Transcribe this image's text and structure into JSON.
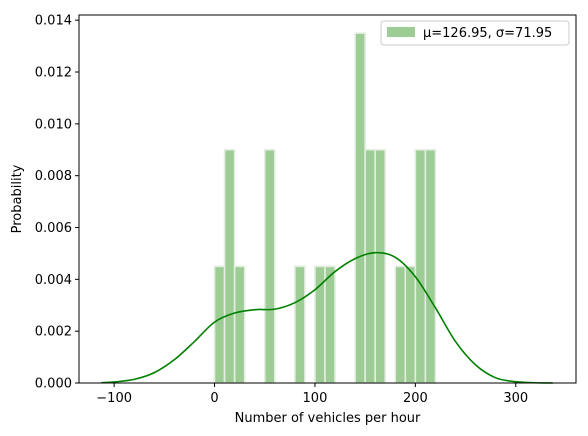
{
  "chart_data": {
    "type": "bar",
    "xlabel": "Number of vehicles per hour",
    "ylabel": "Probability",
    "xlim": [
      -135,
      360
    ],
    "ylim": [
      0,
      0.0142
    ],
    "xticks": [
      -100,
      0,
      100,
      200,
      300
    ],
    "xtick_labels": [
      "−100",
      "0",
      "100",
      "200",
      "300"
    ],
    "yticks": [
      0,
      0.002,
      0.004,
      0.006,
      0.008,
      0.01,
      0.012,
      0.014
    ],
    "ytick_labels": [
      "0.000",
      "0.002",
      "0.004",
      "0.006",
      "0.008",
      "0.010",
      "0.012",
      "0.014"
    ],
    "bin_width": 10,
    "histogram": {
      "name": "μ=126.95, σ=71.95",
      "bins_left": [
        0,
        10,
        20,
        50,
        80,
        100,
        110,
        140,
        150,
        160,
        180,
        190,
        200,
        210
      ],
      "values": [
        0.0045,
        0.009,
        0.0045,
        0.009,
        0.0045,
        0.0045,
        0.0045,
        0.0135,
        0.009,
        0.009,
        0.0045,
        0.0045,
        0.009,
        0.009
      ],
      "color": "#9dcc95",
      "edge_color": "#e3eee1"
    },
    "kde": {
      "color": "#008000",
      "x": [
        -113,
        -100,
        -80,
        -60,
        -40,
        -20,
        0,
        20,
        40,
        60,
        80,
        100,
        120,
        140,
        160,
        180,
        200,
        220,
        240,
        260,
        280,
        300,
        320,
        337
      ],
      "y": [
        1e-05,
        4e-05,
        0.00014,
        0.0004,
        0.0009,
        0.0016,
        0.00235,
        0.0027,
        0.00283,
        0.00285,
        0.0031,
        0.0036,
        0.0043,
        0.0048,
        0.00503,
        0.00485,
        0.0041,
        0.0029,
        0.0016,
        0.0007,
        0.0002,
        5e-05,
        1e-05,
        0.0
      ]
    },
    "legend": {
      "position": "top-right",
      "label": "μ=126.95, σ=71.95"
    }
  }
}
